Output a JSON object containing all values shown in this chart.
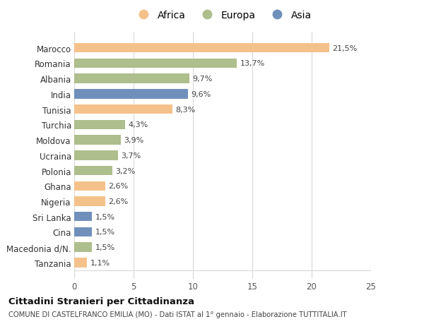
{
  "countries": [
    "Marocco",
    "Romania",
    "Albania",
    "India",
    "Tunisia",
    "Turchia",
    "Moldova",
    "Ucraina",
    "Polonia",
    "Ghana",
    "Nigeria",
    "Sri Lanka",
    "Cina",
    "Macedonia d/N.",
    "Tanzania"
  ],
  "values": [
    21.5,
    13.7,
    9.7,
    9.6,
    8.3,
    4.3,
    3.9,
    3.7,
    3.2,
    2.6,
    2.6,
    1.5,
    1.5,
    1.5,
    1.1
  ],
  "labels": [
    "21,5%",
    "13,7%",
    "9,7%",
    "9,6%",
    "8,3%",
    "4,3%",
    "3,9%",
    "3,7%",
    "3,2%",
    "2,6%",
    "2,6%",
    "1,5%",
    "1,5%",
    "1,5%",
    "1,1%"
  ],
  "categories": [
    "Africa",
    "Europa",
    "Asia"
  ],
  "continent": [
    "Africa",
    "Europa",
    "Europa",
    "Asia",
    "Africa",
    "Europa",
    "Europa",
    "Europa",
    "Europa",
    "Africa",
    "Africa",
    "Asia",
    "Asia",
    "Europa",
    "Africa"
  ],
  "colors": {
    "Africa": "#F5C18A",
    "Europa": "#AEBE8C",
    "Asia": "#7090BB"
  },
  "bg_color": "#ffffff",
  "grid_color": "#d8d8d8",
  "title": "Cittadini Stranieri per Cittadinanza",
  "subtitle": "COMUNE DI CASTELFRANCO EMILIA (MO) - Dati ISTAT al 1° gennaio - Elaborazione TUTTITALIA.IT",
  "xlim": [
    0,
    25
  ],
  "xticks": [
    0,
    5,
    10,
    15,
    20,
    25
  ]
}
